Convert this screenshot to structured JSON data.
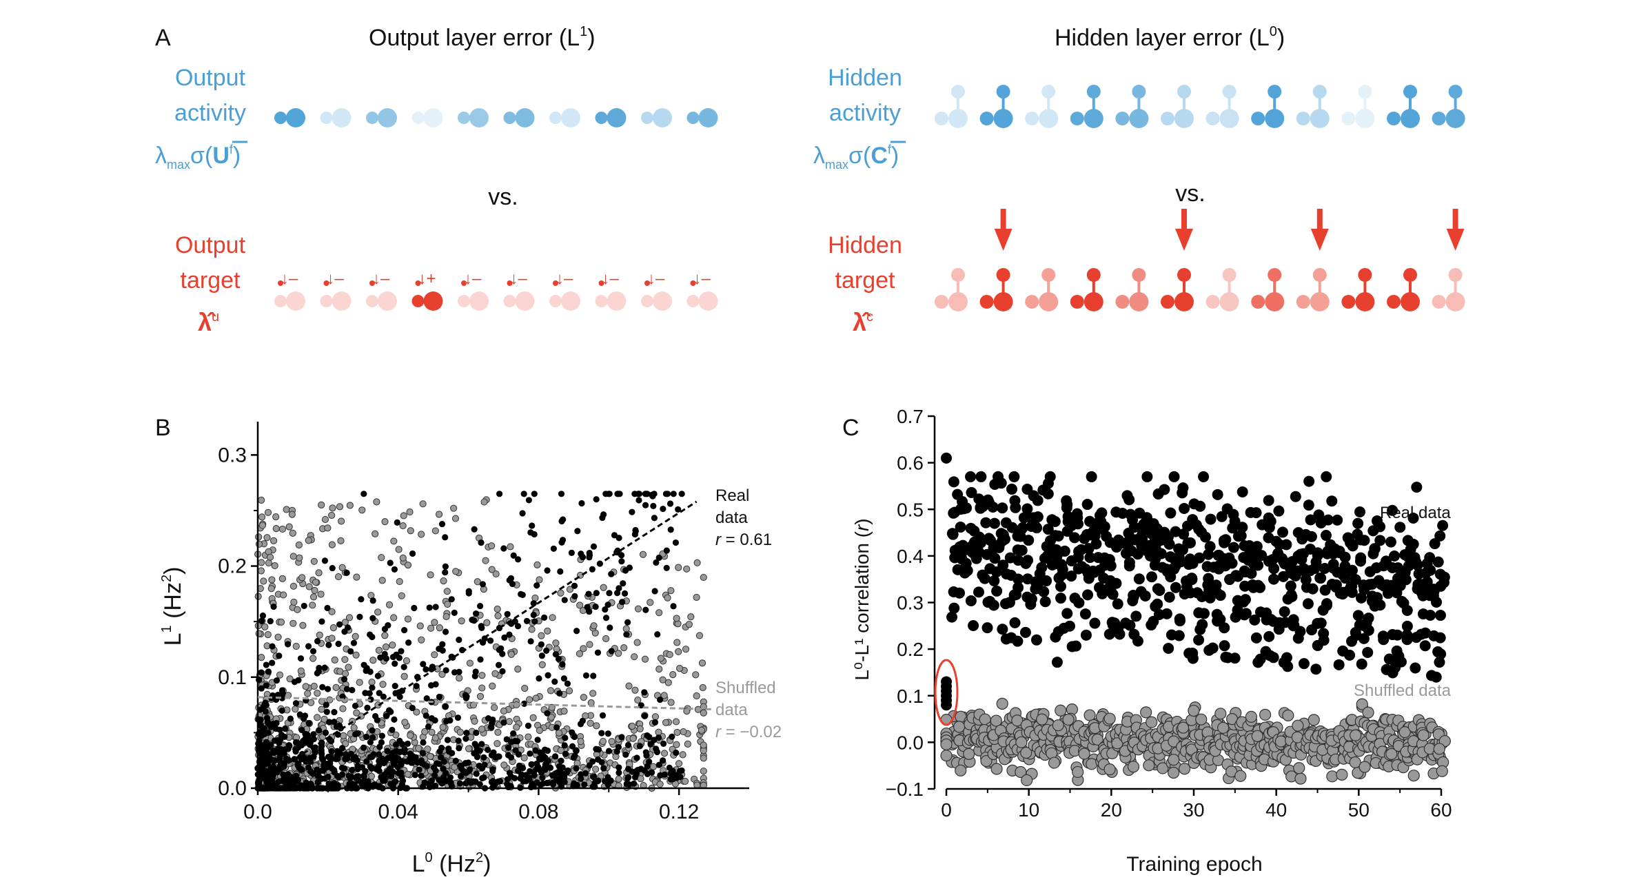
{
  "panel_a": {
    "label": "A",
    "output_title": "Output layer error (L",
    "output_title_sup": "1",
    "hidden_title": "Hidden layer error (L",
    "hidden_title_sup": "0",
    "close_paren": ")",
    "output_activity_line1": "Output",
    "output_activity_line2": "activity",
    "output_activity_formula_pre": "λ",
    "output_activity_formula_sub": "max",
    "output_activity_formula_mid": "σ(",
    "output_activity_formula_var": "U",
    "output_activity_formula_sup": "f",
    "hidden_activity_line1": "Hidden",
    "hidden_activity_line2": "activity",
    "hidden_activity_formula_var": "C",
    "vs_label": "vs.",
    "output_target_line1": "Output",
    "output_target_line2": "target",
    "output_target_symbol": "λ̂",
    "output_target_sup": "u",
    "hidden_target_line1": "Hidden",
    "hidden_target_line2": "target",
    "hidden_target_symbol": "λ̂",
    "hidden_target_sup": "c",
    "output_signs": [
      "↓–",
      "↓–",
      "↓–",
      "↓+",
      "↓–",
      "↓–",
      "↓–",
      "↓–",
      "↓–",
      "↓–"
    ],
    "output_activity_intensity": [
      0.95,
      0.25,
      0.6,
      0.15,
      0.55,
      0.7,
      0.25,
      0.9,
      0.4,
      0.75
    ],
    "output_target_intensity": [
      0.22,
      0.22,
      0.22,
      1.0,
      0.22,
      0.22,
      0.22,
      0.22,
      0.22,
      0.22
    ],
    "hidden_activity_intensity": [
      0.25,
      0.95,
      0.25,
      0.9,
      0.75,
      0.4,
      0.3,
      0.95,
      0.4,
      0.15,
      0.95,
      0.9
    ],
    "hidden_target_intensity": [
      0.35,
      1.0,
      0.5,
      1.0,
      0.6,
      1.0,
      0.3,
      0.75,
      0.5,
      1.0,
      1.0,
      0.35
    ],
    "hidden_target_arrows_at": [
      1,
      5,
      8,
      11
    ],
    "colors": {
      "blue": "#4a9fd6",
      "red": "#e8402e"
    }
  },
  "chart_data": [
    {
      "panel": "B",
      "type": "scatter",
      "xlabel": "L",
      "xlabel_sup": "0",
      "xlabel_unit": " (Hz",
      "xlabel_unit_sup": "2",
      "ylabel": "L",
      "ylabel_sup": "1",
      "ylabel_unit": " (Hz",
      "ylabel_unit_sup": "2",
      "xlim": [
        0.0,
        0.14
      ],
      "ylim": [
        0.0,
        0.33
      ],
      "xticks": [
        "0.0",
        "0.04",
        "0.08",
        "0.12"
      ],
      "yticks": [
        "0.0",
        "0.1",
        "0.2",
        "0.3"
      ],
      "series": [
        {
          "name": "Real data",
          "color": "#000000",
          "r_label": "r",
          "r_value": " = 0.61",
          "fit": [
            [
              0.0,
              0.005
            ],
            [
              0.125,
              0.258
            ]
          ],
          "legend_line1": "Real",
          "legend_line2": "data"
        },
        {
          "name": "Shuffled data",
          "color": "#999999",
          "r_label": "r",
          "r_value": " = −0.02",
          "fit": [
            [
              0.0,
              0.082
            ],
            [
              0.13,
              0.071
            ]
          ],
          "legend_line1": "Shuffled",
          "legend_line2": "data"
        }
      ],
      "n_points_per_series": 1100
    },
    {
      "panel": "C",
      "type": "scatter",
      "xlabel": "Training epoch",
      "ylabel_text": "L⁰-L¹ correlation (",
      "ylabel_r": "r",
      "ylabel_end": ")",
      "xlim": [
        0,
        60
      ],
      "ylim": [
        -0.1,
        0.7
      ],
      "xticks": [
        "0",
        "10",
        "20",
        "30",
        "40",
        "50",
        "60"
      ],
      "yticks": [
        "−0.1",
        "0.0",
        "0.1",
        "0.2",
        "0.3",
        "0.4",
        "0.5",
        "0.6",
        "0.7"
      ],
      "series": [
        {
          "name": "Real data",
          "color": "#000000",
          "mean_start": 0.45,
          "mean_end": 0.35
        },
        {
          "name": "Shuffled data",
          "color": "#999999",
          "mean_start": 0.0,
          "mean_end": 0.0
        }
      ],
      "epoch0_real_values": [
        0.08,
        0.09,
        0.1,
        0.11,
        0.12,
        0.13
      ],
      "highlight_color": "#e8402e"
    }
  ]
}
